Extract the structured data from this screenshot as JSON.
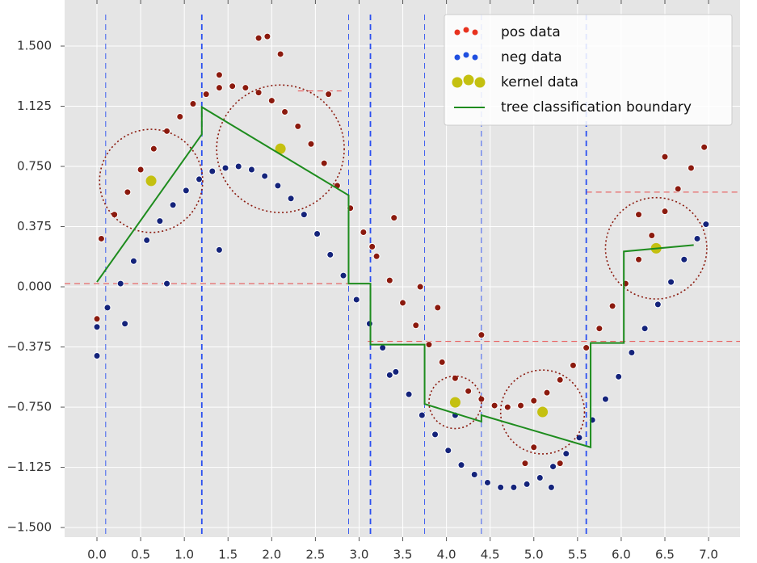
{
  "chart_data": {
    "type": "scatter",
    "xlim": [
      -0.37,
      7.36
    ],
    "ylim": [
      -1.56,
      1.787
    ],
    "xticks": [
      {
        "value": 0,
        "label": "0.0"
      },
      {
        "value": 0.5,
        "label": "0.5"
      },
      {
        "value": 1,
        "label": "1.0"
      },
      {
        "value": 1.5,
        "label": "1.5"
      },
      {
        "value": 2,
        "label": "2.0"
      },
      {
        "value": 2.5,
        "label": "2.5"
      },
      {
        "value": 3,
        "label": "3.0"
      },
      {
        "value": 3.5,
        "label": "3.5"
      },
      {
        "value": 4,
        "label": "4.0"
      },
      {
        "value": 4.5,
        "label": "4.5"
      },
      {
        "value": 5,
        "label": "5.0"
      },
      {
        "value": 5.5,
        "label": "5.5"
      },
      {
        "value": 6,
        "label": "6.0"
      },
      {
        "value": 6.5,
        "label": "6.5"
      },
      {
        "value": 7,
        "label": "7.0"
      }
    ],
    "yticks": [
      {
        "value": -1.5,
        "label": "−1.500"
      },
      {
        "value": -1.125,
        "label": "−1.125"
      },
      {
        "value": -0.75,
        "label": "−0.750"
      },
      {
        "value": -0.375,
        "label": "−0.375"
      },
      {
        "value": 0,
        "label": "0.000"
      },
      {
        "value": 0.375,
        "label": "0.375"
      },
      {
        "value": 0.75,
        "label": "0.750"
      },
      {
        "value": 1.125,
        "label": "1.125"
      },
      {
        "value": 1.5,
        "label": "1.500"
      }
    ],
    "grid": true,
    "legend": "upper right",
    "series": [
      {
        "name": "pos data",
        "color": "#8b1a0e",
        "legend_color": "#e8321e",
        "x": [
          0.05,
          0.2,
          0.35,
          0.5,
          0.65,
          0.8,
          0.95,
          1.1,
          1.25,
          1.4,
          1.55,
          1.7,
          1.85,
          2.0,
          2.15,
          2.3,
          2.45,
          2.6,
          2.75,
          2.9,
          3.05,
          3.2,
          3.35,
          3.5,
          3.65,
          3.8,
          3.95,
          4.1,
          4.25,
          4.4,
          4.55,
          4.7,
          4.85,
          5.0,
          5.15,
          5.3,
          5.45,
          5.6,
          5.75,
          5.9,
          6.05,
          6.2,
          6.35,
          6.5,
          6.65,
          6.8,
          6.95,
          0.0,
          1.85,
          1.95,
          2.1,
          1.4,
          2.65,
          3.15,
          3.4,
          3.7,
          3.9,
          4.4,
          4.9,
          5.0,
          5.3,
          6.5,
          6.2
        ],
        "values": [
          0.3,
          0.45,
          0.59,
          0.73,
          0.86,
          0.97,
          1.06,
          1.14,
          1.2,
          1.24,
          1.25,
          1.24,
          1.21,
          1.16,
          1.09,
          1.0,
          0.89,
          0.77,
          0.63,
          0.49,
          0.34,
          0.19,
          0.04,
          -0.1,
          -0.24,
          -0.36,
          -0.47,
          -0.57,
          -0.65,
          -0.7,
          -0.74,
          -0.75,
          -0.74,
          -0.71,
          -0.66,
          -0.58,
          -0.49,
          -0.38,
          -0.26,
          -0.12,
          0.02,
          0.17,
          0.32,
          0.47,
          0.61,
          0.74,
          0.87,
          -0.2,
          1.55,
          1.56,
          1.45,
          1.32,
          1.2,
          0.25,
          0.43,
          0.0,
          -0.13,
          -0.3,
          -1.1,
          -1.0,
          -1.1,
          0.81,
          0.45
        ]
      },
      {
        "name": "neg data",
        "color": "#14237a",
        "legend_color": "#1f4fe0",
        "x": [
          0.0,
          0.12,
          0.27,
          0.42,
          0.57,
          0.72,
          0.87,
          1.02,
          1.17,
          1.32,
          1.47,
          1.62,
          1.77,
          1.92,
          2.07,
          2.22,
          2.37,
          2.52,
          2.67,
          2.82,
          2.97,
          3.12,
          3.27,
          3.42,
          3.57,
          3.72,
          3.87,
          4.02,
          4.17,
          4.32,
          4.47,
          4.62,
          4.77,
          4.92,
          5.07,
          5.22,
          5.37,
          5.52,
          5.67,
          5.82,
          5.97,
          6.12,
          6.27,
          6.42,
          6.57,
          6.72,
          6.87,
          6.97,
          0.0,
          0.32,
          0.8,
          1.4,
          3.35,
          4.1,
          5.2
        ],
        "values": [
          -0.25,
          -0.13,
          0.02,
          0.16,
          0.29,
          0.41,
          0.51,
          0.6,
          0.67,
          0.72,
          0.74,
          0.75,
          0.73,
          0.69,
          0.63,
          0.55,
          0.45,
          0.33,
          0.2,
          0.07,
          -0.08,
          -0.23,
          -0.38,
          -0.53,
          -0.67,
          -0.8,
          -0.92,
          -1.02,
          -1.11,
          -1.17,
          -1.22,
          -1.25,
          -1.25,
          -1.23,
          -1.19,
          -1.12,
          -1.04,
          -0.94,
          -0.83,
          -0.7,
          -0.56,
          -0.41,
          -0.26,
          -0.11,
          0.03,
          0.17,
          0.3,
          0.39,
          -0.43,
          -0.23,
          0.02,
          0.23,
          -0.55,
          -0.8,
          -1.25
        ]
      },
      {
        "name": "kernel data",
        "color": "#c4c010",
        "legend_color": "#c4c010",
        "kind": "kernel",
        "x": [
          0.62,
          2.1,
          4.1,
          5.1,
          6.4
        ],
        "values": [
          0.66,
          0.86,
          -0.72,
          -0.78,
          0.24
        ],
        "radius": [
          0.59,
          0.73,
          0.3,
          0.48,
          0.58
        ],
        "circle_color": "#8b1a0e"
      },
      {
        "name": "tree classification boundary",
        "color": "#1e8c1e",
        "kind": "line",
        "x": [
          0,
          1.2,
          1.2,
          2.88,
          2.88,
          3.13,
          3.13,
          3.75,
          3.75,
          4.4,
          4.4,
          5.65,
          5.65,
          6.03,
          6.03,
          6.83
        ],
        "values": [
          0.03,
          0.95,
          1.12,
          0.57,
          0.02,
          0.02,
          -0.36,
          -0.36,
          -0.73,
          -0.84,
          -0.8,
          -1.0,
          -0.35,
          -0.35,
          0.22,
          0.26
        ]
      }
    ],
    "vlines": [
      {
        "x": 0.1,
        "width": 1
      },
      {
        "x": 1.2,
        "width": 2
      },
      {
        "x": 2.88,
        "width": 1
      },
      {
        "x": 3.13,
        "width": 2
      },
      {
        "x": 3.75,
        "width": 1
      },
      {
        "x": 4.4,
        "width": 1
      },
      {
        "x": 5.6,
        "width": 2
      }
    ],
    "vline_color": "#2a4ff0",
    "hlines": [
      {
        "y": 0.02,
        "xmin": -0.37,
        "xmax": 2.9
      },
      {
        "y": -0.34,
        "xmin": 3.1,
        "xmax": 7.36
      },
      {
        "y": 0.59,
        "xmin": 5.6,
        "xmax": 7.36
      },
      {
        "y": 1.22,
        "xmin": 2.3,
        "xmax": 2.8
      }
    ],
    "hline_color": "#e84a4a"
  }
}
